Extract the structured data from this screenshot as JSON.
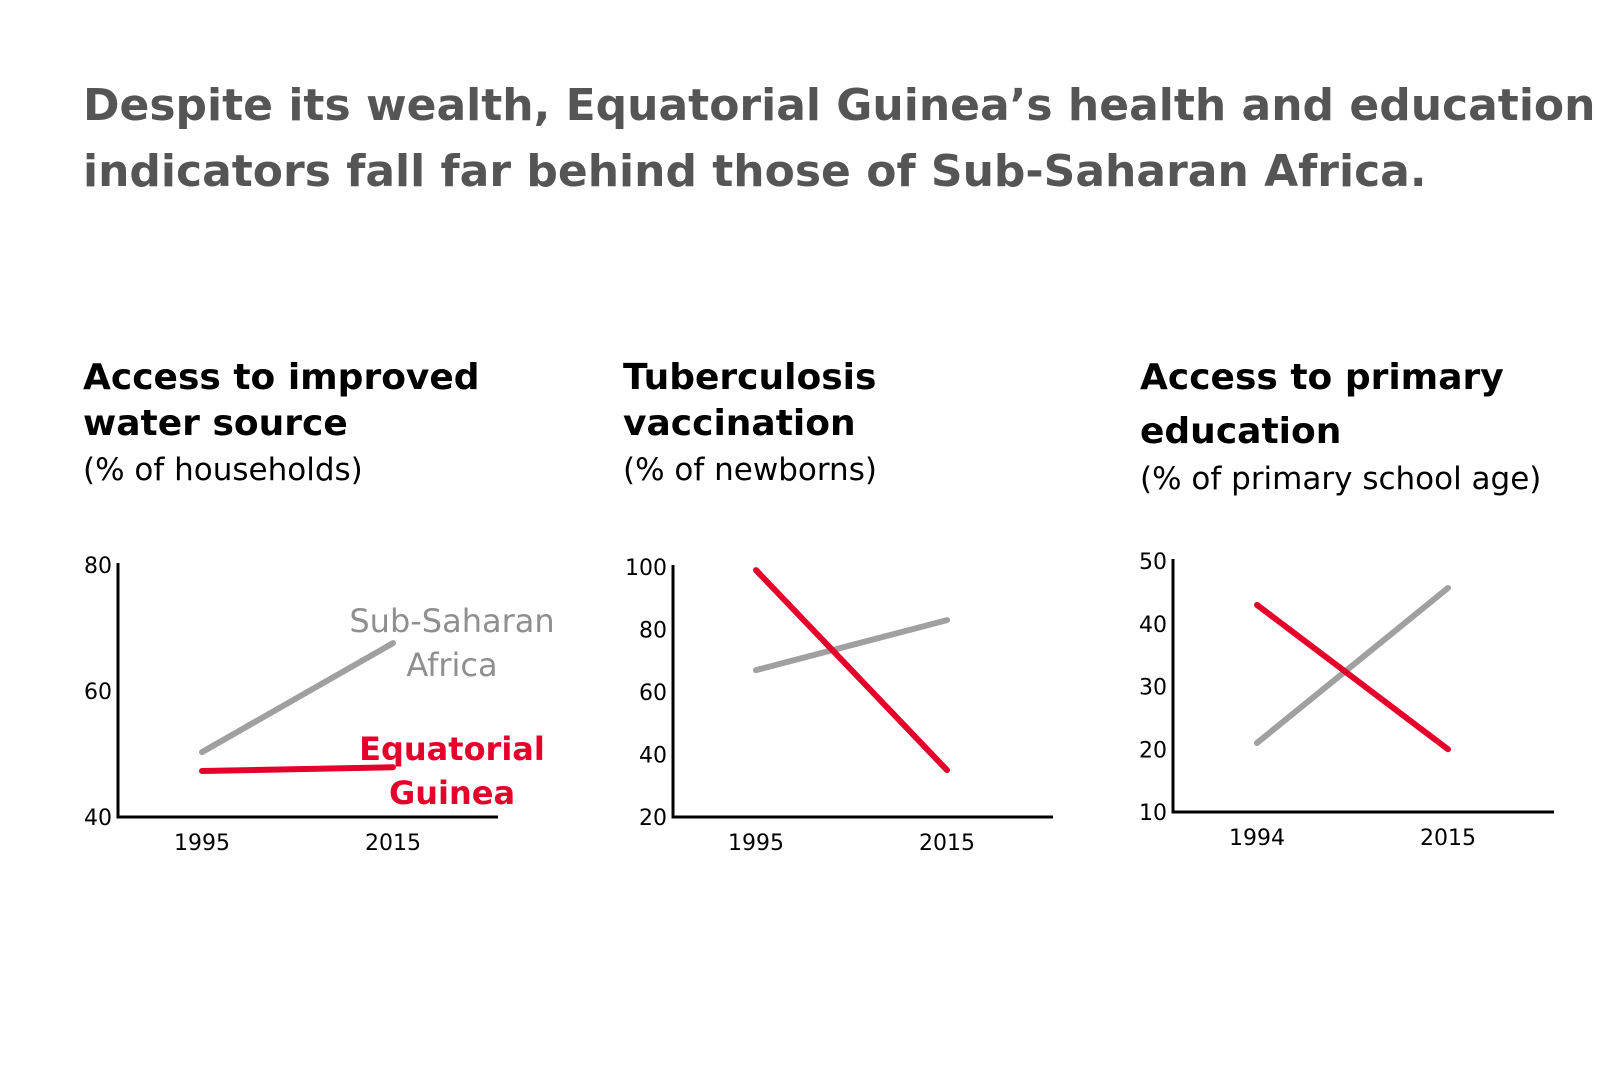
{
  "headline": [
    "Despite its wealth, Equatorial Guinea’s health and education",
    "indicators fall far behind those of Sub-Saharan Africa."
  ],
  "colors": {
    "Equatorial Guinea": "#e4002b",
    "Sub-Saharan Africa": "#a0a0a0",
    "headline": "#555555"
  },
  "chart_data": [
    {
      "type": "line",
      "title_lines": [
        "Access to improved",
        "water source"
      ],
      "subtitle": "(% of households)",
      "x": [
        "1995",
        "2015"
      ],
      "ylim": [
        40,
        80
      ],
      "yticks": [
        "80",
        "60",
        "40"
      ],
      "grid": false,
      "series": [
        {
          "name": "Sub-Saharan Africa",
          "label_lines": [
            "Sub-Saharan",
            "Africa"
          ],
          "values": [
            50.3,
            67.6
          ]
        },
        {
          "name": "Equatorial Guinea",
          "label_lines": [
            "Equatorial",
            "Guinea"
          ],
          "values": [
            47.3,
            47.9
          ]
        }
      ]
    },
    {
      "type": "line",
      "title_lines": [
        "Tuberculosis",
        "vaccination"
      ],
      "subtitle": "(% of newborns)",
      "x": [
        "1995",
        "2015"
      ],
      "ylim": [
        20,
        100
      ],
      "yticks": [
        "100",
        "80",
        "60",
        "40",
        "20"
      ],
      "grid": false,
      "series": [
        {
          "values": [
            67,
            83
          ]
        },
        {
          "values": [
            99,
            35
          ]
        }
      ]
    },
    {
      "type": "line",
      "title_lines": [
        "Access to primary",
        "education"
      ],
      "subtitle": "(% of primary school age)",
      "x": [
        "1994",
        "2015"
      ],
      "ylim": [
        10,
        50
      ],
      "yticks": [
        "50",
        "40",
        "30",
        "20",
        "10"
      ],
      "grid": false,
      "series": [
        {
          "values": [
            21,
            45.7
          ]
        },
        {
          "values": [
            43,
            20
          ]
        }
      ]
    }
  ]
}
